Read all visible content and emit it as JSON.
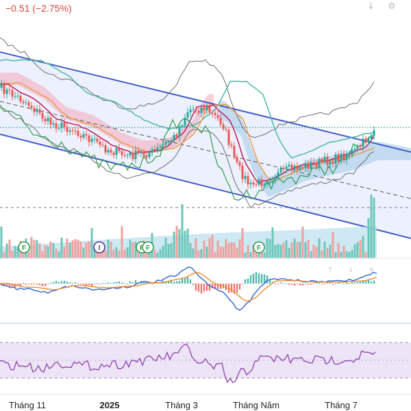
{
  "header": {
    "change": "−0.51 (−2.75%)",
    "color": "#e0433a"
  },
  "toolbar": {
    "icons": [
      "arrow-down-icon",
      "settings-icon"
    ],
    "glyphs": [
      "↓",
      "⚙"
    ]
  },
  "chart_data": {
    "type": "line",
    "xaxis_labels": [
      "Tháng 11",
      "2025",
      "Tháng 3",
      "Tháng Năm",
      "Tháng 7"
    ],
    "xaxis_bold": [
      false,
      true,
      false,
      false,
      false
    ],
    "events": [
      "F",
      "I",
      "F",
      "F",
      "F"
    ],
    "panes": [
      "price",
      "volume",
      "macd",
      "rsi"
    ],
    "colors": {
      "up": "#26a69a",
      "down": "#ef5350",
      "channel": "#3f5bc6",
      "ma_red": "#c2185b",
      "ma_orange": "#ef9a4a",
      "ma_teal": "#4db6ac",
      "bollinger": "#6b6b6b",
      "cloud_pink": "#f4a7b9",
      "cloud_blue": "#9ec9e8",
      "macd": "#2d62d6",
      "signal": "#ef8a2b",
      "rsi": "#8e3fb0",
      "rsi_band": "#ede4f6"
    }
  }
}
